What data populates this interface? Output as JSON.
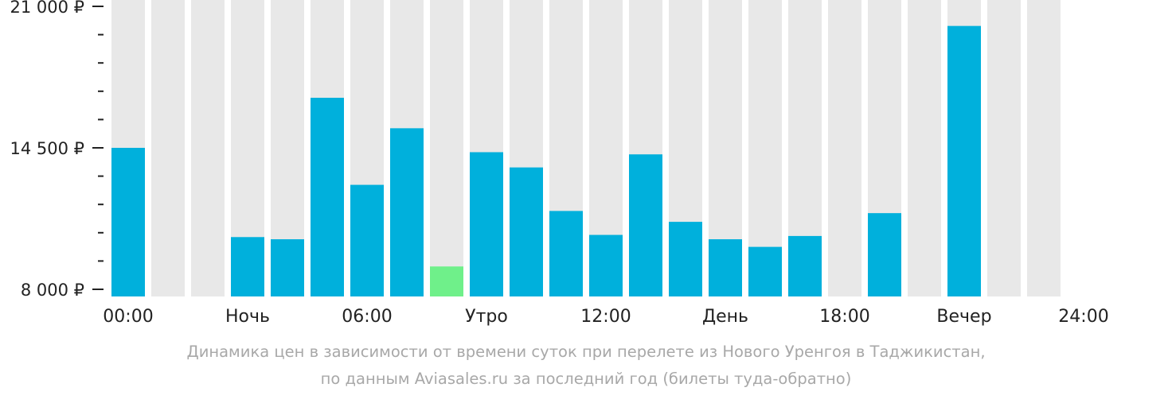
{
  "chart_data": {
    "type": "bar",
    "currency": "₽",
    "ylim": [
      8000,
      21000
    ],
    "ytick_values": [
      8000,
      14500,
      21000
    ],
    "ytick_labels": [
      "8 000 ₽",
      "14 500 ₽",
      "21 000 ₽"
    ],
    "minor_tick_step": 1300,
    "slots": 24,
    "values": [
      14500,
      null,
      null,
      10400,
      10300,
      16800,
      12800,
      15400,
      null,
      14300,
      13600,
      11600,
      10500,
      14200,
      11100,
      10300,
      9950,
      10450,
      null,
      11500,
      null,
      20100,
      null,
      null
    ],
    "min_highlight_value": 9050,
    "min_highlight_slot": 8,
    "x_labels": [
      {
        "slot": 0,
        "text": "00:00"
      },
      {
        "slot": 3,
        "text": "Ночь"
      },
      {
        "slot": 6,
        "text": "06:00"
      },
      {
        "slot": 9,
        "text": "Утро"
      },
      {
        "slot": 12,
        "text": "12:00"
      },
      {
        "slot": 15,
        "text": "День"
      },
      {
        "slot": 18,
        "text": "18:00"
      },
      {
        "slot": 21,
        "text": "Вечер"
      },
      {
        "slot": 24,
        "text": "24:00"
      }
    ],
    "colors": {
      "bar": "#00b0dc",
      "min_bar": "#6ff08a",
      "slot_background": "#e8e8e8",
      "tick": "#222222"
    }
  },
  "caption": {
    "line1": "Динамика цен в зависимости от времени суток при перелете из Нового Уренгоя в Таджикистан,",
    "line2": "по данным Aviasales.ru за последний год (билеты туда-обратно)"
  }
}
